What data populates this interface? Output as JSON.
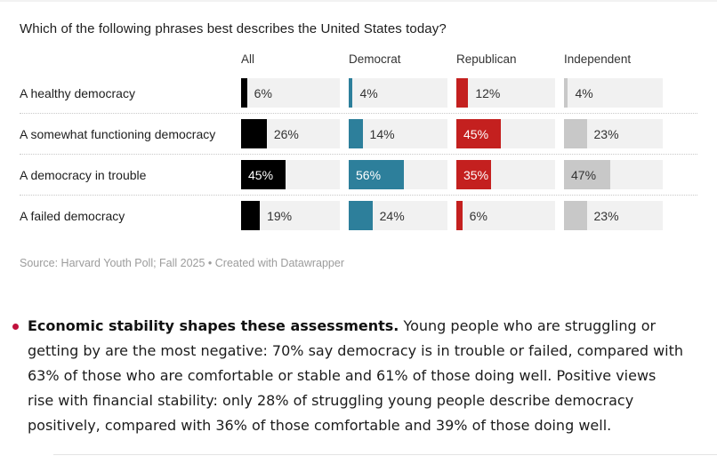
{
  "chart": {
    "title": "Which of the following phrases best describes the United States today?",
    "source": "Source: Harvard Youth Poll; Fall 2025 • Created with Datawrapper"
  },
  "chart_data": {
    "type": "bar",
    "layout": "grouped-row-bars",
    "title": "Which of the following phrases best describes the United States today?",
    "categories": [
      "A healthy democracy",
      "A somewhat functioning democracy",
      "A democracy in trouble",
      "A failed democracy"
    ],
    "series": [
      {
        "name": "All",
        "color": "#000000",
        "values": [
          6,
          26,
          45,
          19
        ]
      },
      {
        "name": "Democrat",
        "color": "#2d7f9b",
        "values": [
          4,
          14,
          56,
          24
        ]
      },
      {
        "name": "Republican",
        "color": "#c4201f",
        "values": [
          12,
          45,
          35,
          6
        ]
      },
      {
        "name": "Independent",
        "color": "#c8c8c8",
        "values": [
          4,
          23,
          47,
          23
        ]
      }
    ],
    "value_suffix": "%",
    "xlim": [
      0,
      100
    ],
    "track_color": "#f1f1f1",
    "inside_label_threshold": 35,
    "source": "Source: Harvard Youth Poll; Fall 2025 • Created with Datawrapper"
  },
  "bullet": {
    "marker_color": "#c0103c",
    "lead_bold": "Economic stability shapes these assessments.",
    "body": " Young people who are struggling or getting by are the most negative: 70% say democracy is in trouble or failed, compared with 63% of those who are comfortable or stable and 61% of those doing well. Positive views rise with financial stability: only 28% of struggling young people describe democracy positively, compared with 36% of those comfortable and 39% of those doing well."
  }
}
